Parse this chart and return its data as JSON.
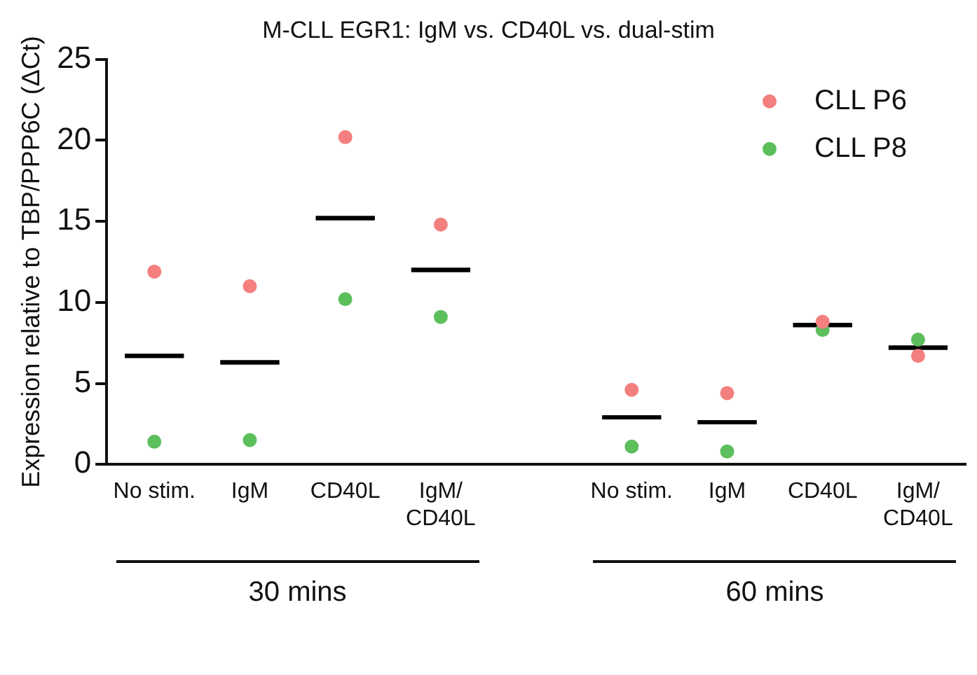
{
  "chart_data": {
    "type": "scatter",
    "title": "M-CLL EGR1: IgM vs. CD40L vs. dual-stim",
    "ylabel": "Expression relative to TBP/PPP6C (ΔCt)",
    "categories": [
      "No stim.",
      "IgM",
      "CD40L",
      "IgM/CD40L",
      null,
      "No stim.",
      "IgM",
      "CD40L",
      "IgM/CD40L"
    ],
    "series": [
      {
        "name": "CLL P6",
        "color": "#f47f7f",
        "values": [
          11.9,
          11.0,
          20.2,
          14.8,
          null,
          4.6,
          4.4,
          8.8,
          6.7
        ]
      },
      {
        "name": "CLL P8",
        "color": "#5cbf5c",
        "values": [
          1.4,
          1.5,
          10.2,
          9.1,
          null,
          1.1,
          0.8,
          8.3,
          7.7
        ]
      },
      {
        "type": "box",
        "color": "#000000",
        "boxes": [
          {
            "low": 6.7,
            "q1": 6.7,
            "median": 6.7,
            "q3": 6.7,
            "high": 6.7
          },
          {
            "low": 6.3,
            "q1": 6.3,
            "median": 6.3,
            "q3": 6.3,
            "high": 6.3
          },
          {
            "low": 15.2,
            "q1": 15.2,
            "median": 15.2,
            "q3": 15.2,
            "high": 15.2
          },
          {
            "low": 12.0,
            "q1": 12.0,
            "median": 12.0,
            "q3": 12.0,
            "high": 12.0
          },
          null,
          {
            "low": 2.9,
            "q1": 2.9,
            "median": 2.9,
            "q3": 2.9,
            "high": 2.9
          },
          {
            "low": 2.6,
            "q1": 2.6,
            "median": 2.6,
            "q3": 2.6,
            "high": 2.6
          },
          {
            "low": 8.6,
            "q1": 8.6,
            "median": 8.6,
            "q3": 8.6,
            "high": 8.6
          },
          {
            "low": 7.2,
            "q1": 7.2,
            "median": 7.2,
            "q3": 7.2,
            "high": 7.2
          }
        ]
      }
    ],
    "ylim": [
      0,
      25
    ],
    "yticks": [
      0,
      5,
      10,
      15,
      20,
      25
    ],
    "grid": false,
    "legend": "top right",
    "marker": "circle",
    "annotations": [
      "30 mins",
      "60 mins"
    ]
  }
}
